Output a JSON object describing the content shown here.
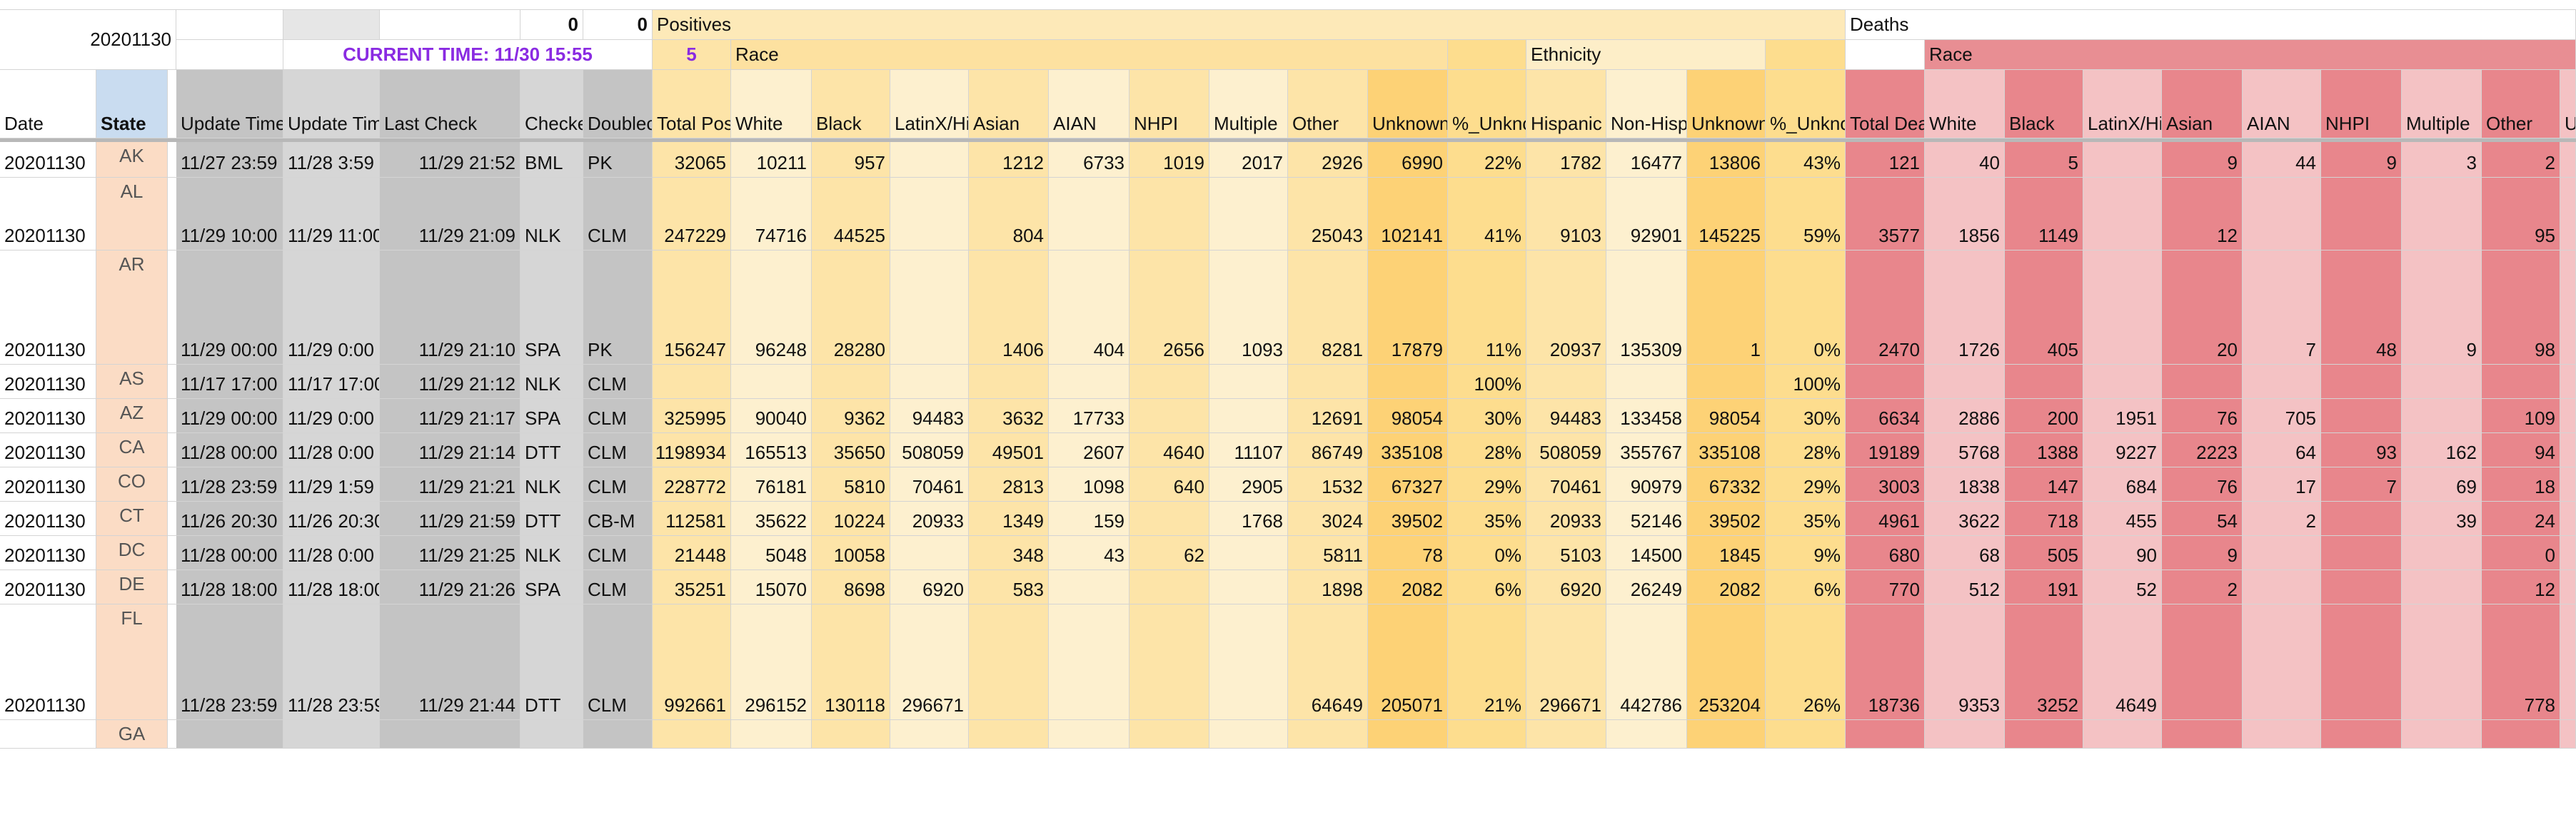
{
  "sheet": {
    "date_label": "20201130",
    "num_a": "0",
    "num_b": "0",
    "current_time": "CURRENT TIME: 11/30 15:55",
    "positives_count": "5",
    "group_positives": "Positives",
    "group_deaths": "Deaths",
    "group_race": "Race",
    "group_ethnicity": "Ethnicity",
    "group_race_deaths": "Race"
  },
  "colors": {
    "grey": "#c4c4c4",
    "grey_light": "#d6d6d6",
    "state_blue": "#c9dcf0",
    "state_peach": "#fbdcc5",
    "y1": "#fde4a8",
    "y2": "#fdf0cf",
    "y3": "#fddd8e",
    "y4": "#fdd276",
    "r1": "#e8868c",
    "r2": "#f4c2c4",
    "r3": "#ec9ea3",
    "group_pos": "#fde9b8",
    "group_race": "#fde1a0",
    "group_eth": "#fdeec8",
    "group_deaths_race": "#e88e93"
  },
  "columns": [
    {
      "id": "date",
      "header": "Date"
    },
    {
      "id": "state",
      "header": "State"
    },
    {
      "id": "gap",
      "header": ""
    },
    {
      "id": "upd1",
      "header": "Update Time"
    },
    {
      "id": "upd2",
      "header": "Update Time"
    },
    {
      "id": "last",
      "header": "Last Check"
    },
    {
      "id": "check",
      "header": "Checker"
    },
    {
      "id": "dbl",
      "header": "Doublechecker"
    },
    {
      "id": "tp",
      "header": "Total Positives"
    },
    {
      "id": "w",
      "header": "White"
    },
    {
      "id": "b",
      "header": "Black"
    },
    {
      "id": "lx",
      "header": "LatinX/Hispanic"
    },
    {
      "id": "as",
      "header": "Asian"
    },
    {
      "id": "ai",
      "header": "AIAN"
    },
    {
      "id": "nh",
      "header": "NHPI"
    },
    {
      "id": "mu",
      "header": "Multiple"
    },
    {
      "id": "ot",
      "header": "Other"
    },
    {
      "id": "un",
      "header": "Unknown"
    },
    {
      "id": "pu",
      "header": "%_Unknown"
    },
    {
      "id": "hi",
      "header": "Hispanic"
    },
    {
      "id": "nhis",
      "header": "Non-Hispanic"
    },
    {
      "id": "eu",
      "header": "Unknown"
    },
    {
      "id": "epu",
      "header": "%_Unknown"
    },
    {
      "id": "td",
      "header": "Total Deaths"
    },
    {
      "id": "dw",
      "header": "White"
    },
    {
      "id": "db",
      "header": "Black"
    },
    {
      "id": "dlx",
      "header": "LatinX/Hispanic"
    },
    {
      "id": "das",
      "header": "Asian"
    },
    {
      "id": "dai",
      "header": "AIAN"
    },
    {
      "id": "dnh",
      "header": "NHPI"
    },
    {
      "id": "dmu",
      "header": "Multiple"
    },
    {
      "id": "dot",
      "header": "Other"
    },
    {
      "id": "dun",
      "header": "Unknown"
    }
  ],
  "rows": [
    {
      "h": 50,
      "cells": [
        "20201130",
        "AK",
        "",
        "11/27 23:59",
        "11/28 3:59",
        "11/29 21:52",
        "BML",
        "PK",
        "32065",
        "10211",
        "957",
        "",
        "1212",
        "6733",
        "1019",
        "2017",
        "2926",
        "6990",
        "22%",
        "1782",
        "16477",
        "13806",
        "43%",
        "121",
        "40",
        "5",
        "",
        "9",
        "44",
        "9",
        "3",
        "2",
        ""
      ]
    },
    {
      "h": 102,
      "cells": [
        "20201130",
        "AL",
        "",
        "11/29 10:00",
        "11/29 11:00",
        "11/29 21:09",
        "NLK",
        "CLM",
        "247229",
        "74716",
        "44525",
        "",
        "804",
        "",
        "",
        "",
        "25043",
        "102141",
        "41%",
        "9103",
        "92901",
        "145225",
        "59%",
        "3577",
        "1856",
        "1149",
        "",
        "12",
        "",
        "",
        "",
        "95",
        ""
      ]
    },
    {
      "h": 160,
      "cells": [
        "20201130",
        "AR",
        "",
        "11/29 00:00",
        "11/29 0:00",
        "11/29 21:10",
        "SPA",
        "PK",
        "156247",
        "96248",
        "28280",
        "",
        "1406",
        "404",
        "2656",
        "1093",
        "8281",
        "17879",
        "11%",
        "20937",
        "135309",
        "1",
        "0%",
        "2470",
        "1726",
        "405",
        "",
        "20",
        "7",
        "48",
        "9",
        "98",
        ""
      ]
    },
    {
      "h": 48,
      "cells": [
        "20201130",
        "AS",
        "",
        "11/17 17:00",
        "11/17 17:00",
        "11/29 21:12",
        "NLK",
        "CLM",
        "",
        "",
        "",
        "",
        "",
        "",
        "",
        "",
        "",
        "",
        "100%",
        "",
        "",
        "",
        "100%",
        "",
        "",
        "",
        "",
        "",
        "",
        "",
        "",
        "",
        ""
      ]
    },
    {
      "h": 48,
      "cells": [
        "20201130",
        "AZ",
        "",
        "11/29 00:00",
        "11/29 0:00",
        "11/29 21:17",
        "SPA",
        "CLM",
        "325995",
        "90040",
        "9362",
        "94483",
        "3632",
        "17733",
        "",
        "",
        "12691",
        "98054",
        "30%",
        "94483",
        "133458",
        "98054",
        "30%",
        "6634",
        "2886",
        "200",
        "1951",
        "76",
        "705",
        "",
        "",
        "109",
        ""
      ]
    },
    {
      "h": 48,
      "cells": [
        "20201130",
        "CA",
        "",
        "11/28 00:00",
        "11/28 0:00",
        "11/29 21:14",
        "DTT",
        "CLM",
        "1198934",
        "165513",
        "35650",
        "508059",
        "49501",
        "2607",
        "4640",
        "11107",
        "86749",
        "335108",
        "28%",
        "508059",
        "355767",
        "335108",
        "28%",
        "19189",
        "5768",
        "1388",
        "9227",
        "2223",
        "64",
        "93",
        "162",
        "94",
        ""
      ]
    },
    {
      "h": 48,
      "cells": [
        "20201130",
        "CO",
        "",
        "11/28 23:59",
        "11/29 1:59",
        "11/29 21:21",
        "NLK",
        "CLM",
        "228772",
        "76181",
        "5810",
        "70461",
        "2813",
        "1098",
        "640",
        "2905",
        "1532",
        "67327",
        "29%",
        "70461",
        "90979",
        "67332",
        "29%",
        "3003",
        "1838",
        "147",
        "684",
        "76",
        "17",
        "7",
        "69",
        "18",
        ""
      ]
    },
    {
      "h": 48,
      "cells": [
        "20201130",
        "CT",
        "",
        "11/26 20:30",
        "11/26 20:30",
        "11/29 21:59",
        "DTT",
        "CB-M",
        "112581",
        "35622",
        "10224",
        "20933",
        "1349",
        "159",
        "",
        "1768",
        "3024",
        "39502",
        "35%",
        "20933",
        "52146",
        "39502",
        "35%",
        "4961",
        "3622",
        "718",
        "455",
        "54",
        "2",
        "",
        "39",
        "24",
        ""
      ]
    },
    {
      "h": 48,
      "cells": [
        "20201130",
        "DC",
        "",
        "11/28 00:00",
        "11/28 0:00",
        "11/29 21:25",
        "NLK",
        "CLM",
        "21448",
        "5048",
        "10058",
        "",
        "348",
        "43",
        "62",
        "",
        "5811",
        "78",
        "0%",
        "5103",
        "14500",
        "1845",
        "9%",
        "680",
        "68",
        "505",
        "90",
        "9",
        "",
        "",
        "",
        "0",
        ""
      ]
    },
    {
      "h": 48,
      "cells": [
        "20201130",
        "DE",
        "",
        "11/28 18:00",
        "11/28 18:00",
        "11/29 21:26",
        "SPA",
        "CLM",
        "35251",
        "15070",
        "8698",
        "6920",
        "583",
        "",
        "",
        "",
        "1898",
        "2082",
        "6%",
        "6920",
        "26249",
        "2082",
        "6%",
        "770",
        "512",
        "191",
        "52",
        "2",
        "",
        "",
        "",
        "12",
        ""
      ]
    },
    {
      "h": 162,
      "cells": [
        "20201130",
        "FL",
        "",
        "11/28 23:59",
        "11/28 23:59",
        "11/29 21:44",
        "DTT",
        "CLM",
        "992661",
        "296152",
        "130118",
        "296671",
        "",
        "",
        "",
        "",
        "64649",
        "205071",
        "21%",
        "296671",
        "442786",
        "253204",
        "26%",
        "18736",
        "9353",
        "3252",
        "4649",
        "",
        "",
        "",
        "",
        "778",
        ""
      ]
    },
    {
      "h": 40,
      "cells": [
        "",
        "GA",
        "",
        "",
        "",
        "",
        "",
        "",
        "",
        "",
        "",
        "",
        "",
        "",
        "",
        "",
        "",
        "",
        "",
        "",
        "",
        "",
        "",
        "",
        "",
        "",
        "",
        "",
        "",
        "",
        "",
        "",
        ""
      ]
    }
  ]
}
